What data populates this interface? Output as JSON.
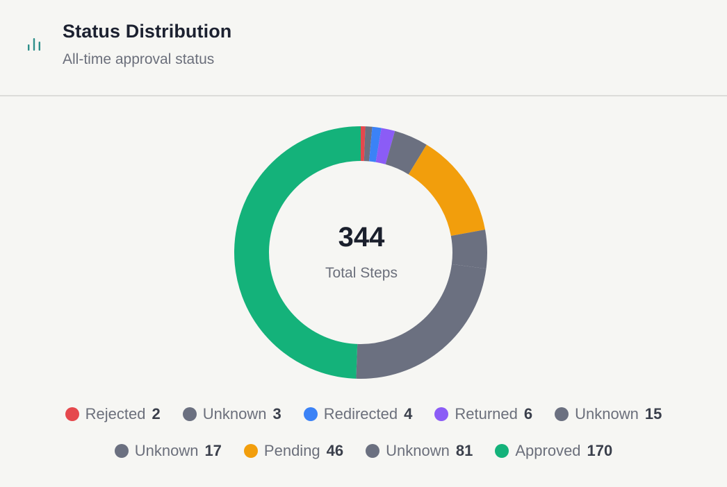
{
  "header": {
    "title": "Status Distribution",
    "subtitle": "All-time approval status",
    "icon": "bar-chart-icon",
    "icon_color": "#2e8f8a"
  },
  "center": {
    "value": "344",
    "label": "Total Steps"
  },
  "chart_data": {
    "type": "pie",
    "donut": true,
    "total": 344,
    "segments": [
      {
        "label": "Rejected",
        "value": 2,
        "color": "#e5484d"
      },
      {
        "label": "Unknown",
        "value": 3,
        "color": "#6b7080"
      },
      {
        "label": "Redirected",
        "value": 4,
        "color": "#3b82f6"
      },
      {
        "label": "Returned",
        "value": 6,
        "color": "#8b5cf6"
      },
      {
        "label": "Unknown",
        "value": 15,
        "color": "#6b7080"
      },
      {
        "label": "Unknown",
        "value": 17,
        "color": "#6b7080"
      },
      {
        "label": "Pending",
        "value": 46,
        "color": "#f29e0c"
      },
      {
        "label": "Unknown",
        "value": 81,
        "color": "#6b7080"
      },
      {
        "label": "Approved",
        "value": 170,
        "color": "#14b27a"
      }
    ],
    "arc_order": [
      "Rejected",
      "Unknown",
      "Redirected",
      "Returned",
      "Unknown",
      "Pending",
      "Unknown",
      "Unknown",
      "Approved"
    ],
    "arc_values": [
      2,
      3,
      4,
      6,
      15,
      46,
      17,
      81,
      170
    ],
    "legend_placement": "bottom"
  },
  "legend": {
    "rows": [
      [
        {
          "label": "Rejected",
          "value": "2",
          "color": "#e5484d"
        },
        {
          "label": "Unknown",
          "value": "3",
          "color": "#6b7080"
        },
        {
          "label": "Redirected",
          "value": "4",
          "color": "#3b82f6"
        },
        {
          "label": "Returned",
          "value": "6",
          "color": "#8b5cf6"
        },
        {
          "label": "Unknown",
          "value": "15",
          "color": "#6b7080"
        }
      ],
      [
        {
          "label": "Unknown",
          "value": "17",
          "color": "#6b7080"
        },
        {
          "label": "Pending",
          "value": "46",
          "color": "#f29e0c"
        },
        {
          "label": "Unknown",
          "value": "81",
          "color": "#6b7080"
        },
        {
          "label": "Approved",
          "value": "170",
          "color": "#14b27a"
        }
      ]
    ]
  }
}
